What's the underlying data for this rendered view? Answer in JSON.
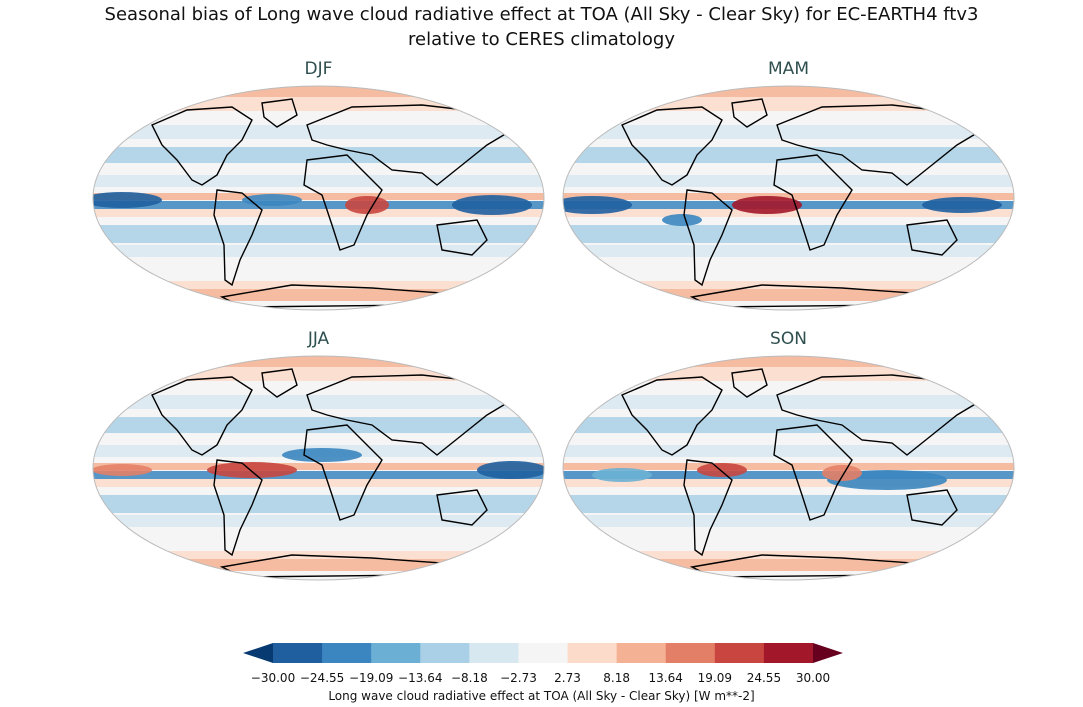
{
  "title": {
    "line1": "Seasonal bias of Long wave cloud radiative effect at TOA (All Sky - Clear Sky) for EC-EARTH4 ftv3",
    "line2": "relative to CERES climatology"
  },
  "panels": [
    {
      "label": "DJF"
    },
    {
      "label": "MAM"
    },
    {
      "label": "JJA"
    },
    {
      "label": "SON"
    }
  ],
  "colorbar": {
    "label": "Long wave cloud radiative effect at TOA (All Sky - Clear Sky) [W m**-2]",
    "ticks": [
      "−30.00",
      "−24.55",
      "−19.09",
      "−13.64",
      "−8.18",
      "−2.73",
      "2.73",
      "8.18",
      "13.64",
      "19.09",
      "24.55",
      "30.00"
    ],
    "colors": [
      "#1f5fa0",
      "#3b86c0",
      "#6bb0d4",
      "#a9d0e6",
      "#d8e8f1",
      "#f5f5f5",
      "#fcdbca",
      "#f5b193",
      "#e47f67",
      "#c8463f",
      "#a3172a"
    ],
    "under_color": "#073a70",
    "over_color": "#67001f",
    "extend": "both"
  }
}
